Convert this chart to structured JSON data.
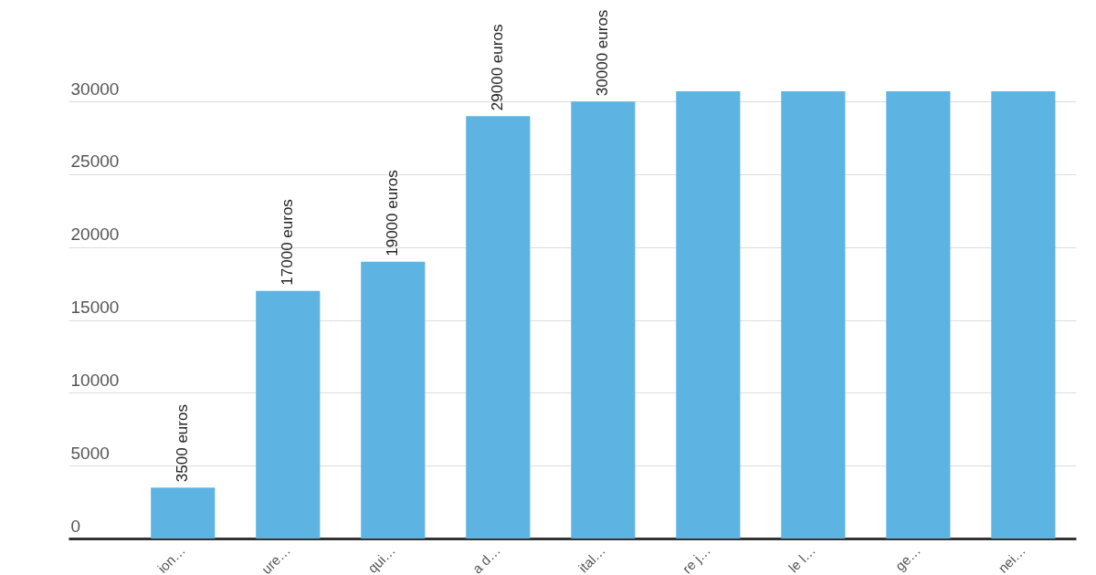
{
  "chart_data": {
    "type": "bar",
    "categories": [
      "ion…",
      "ure…",
      "qui…",
      "a d…",
      "ital…",
      "re j…",
      "le l…",
      "ge…",
      "nei…"
    ],
    "values": [
      3500,
      17000,
      19000,
      29000,
      30000,
      30700,
      30700,
      30700,
      30700
    ],
    "value_labels": [
      "3500 euros",
      "17000 euros",
      "19000 euros",
      "29000 euros",
      "30000 euros",
      null,
      null,
      null,
      null
    ],
    "color": "#5db4e3",
    "ylim": [
      0,
      30700
    ],
    "yticks": [
      0,
      5000,
      10000,
      15000,
      20000,
      25000,
      30000
    ],
    "grid": "y"
  }
}
